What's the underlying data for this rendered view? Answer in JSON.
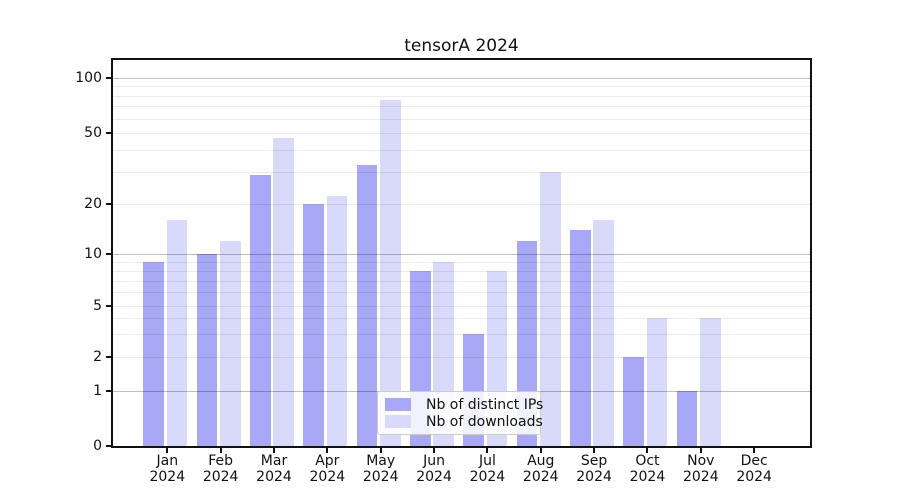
{
  "title": "tensorA 2024",
  "colors": {
    "ips": "#a8a8f7",
    "downloads": "#d9d9fa",
    "spine": "#111111"
  },
  "legend": {
    "items": [
      {
        "label": "Nb of distinct IPs",
        "series": "ips"
      },
      {
        "label": "Nb of downloads",
        "series": "downloads"
      }
    ]
  },
  "y_axis": {
    "labeled_ticks": [
      100,
      50,
      20,
      10,
      5,
      2,
      1,
      0
    ],
    "major_grid_values": [
      1,
      10,
      100
    ],
    "minor_grid_values": [
      2,
      3,
      4,
      5,
      6,
      7,
      8,
      9,
      20,
      30,
      40,
      50,
      60,
      70,
      80,
      90
    ]
  },
  "x_axis": {
    "months": [
      "Jan",
      "Feb",
      "Mar",
      "Apr",
      "May",
      "Jun",
      "Jul",
      "Aug",
      "Sep",
      "Oct",
      "Nov",
      "Dec"
    ],
    "year": "2024"
  },
  "chart_data": {
    "type": "bar",
    "title": "tensorA 2024",
    "categories": [
      "Jan 2024",
      "Feb 2024",
      "Mar 2024",
      "Apr 2024",
      "May 2024",
      "Jun 2024",
      "Jul 2024",
      "Aug 2024",
      "Sep 2024",
      "Oct 2024",
      "Nov 2024",
      "Dec 2024"
    ],
    "series": [
      {
        "name": "Nb of distinct IPs",
        "values": [
          9,
          10,
          29,
          20,
          33,
          8,
          3,
          12,
          14,
          2,
          1,
          0
        ]
      },
      {
        "name": "Nb of downloads",
        "values": [
          16,
          12,
          47,
          22,
          76,
          9,
          8,
          30,
          16,
          4,
          4,
          0
        ]
      }
    ],
    "xlabel": "",
    "ylabel": "",
    "yscale": "symlog (log above 1, linear 0 to 1)",
    "ylim": [
      0,
      125
    ],
    "yticks": [
      0,
      1,
      2,
      5,
      10,
      20,
      50,
      100
    ],
    "grid": true,
    "grid_on_top": true,
    "legend_position": "lower center"
  }
}
